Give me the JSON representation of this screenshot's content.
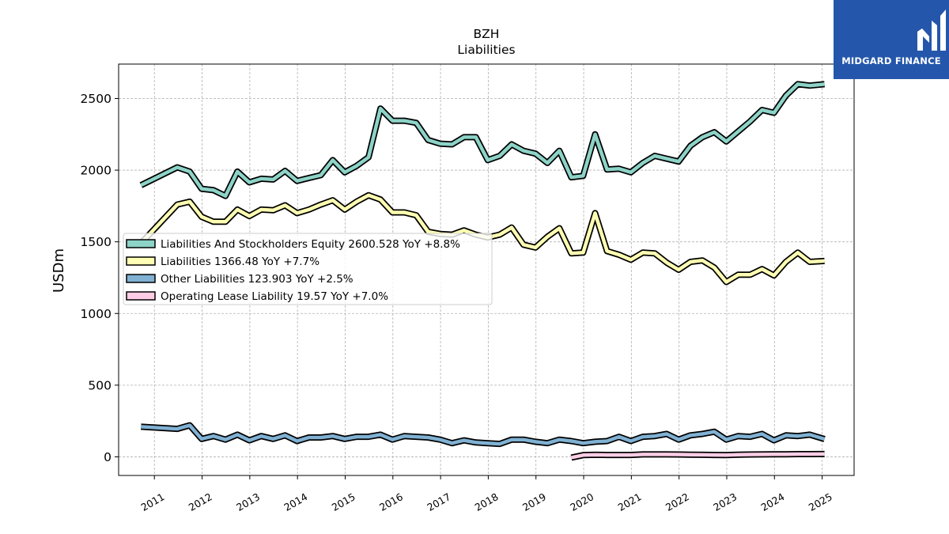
{
  "chart_data": {
    "type": "line",
    "title": "BZH",
    "subtitle": "Liabilities",
    "xlabel": "",
    "ylabel": "USDm",
    "ylim": [
      -130,
      2740
    ],
    "xlim": [
      2010.25,
      2025.67
    ],
    "yticks": [
      0,
      500,
      1000,
      1500,
      2000,
      2500
    ],
    "xticks": [
      "2011",
      "2012",
      "2013",
      "2014",
      "2015",
      "2016",
      "2017",
      "2018",
      "2019",
      "2020",
      "2021",
      "2022",
      "2023",
      "2024",
      "2025"
    ],
    "grid": true,
    "legend_position": "center-left",
    "series": [
      {
        "name": "Liabilities And Stockholders Equity",
        "legend": "Liabilities And Stockholders Equity  2600.528 YoY +8.8%",
        "color": "#8dd3c7",
        "points": [
          [
            2010.72,
            1895
          ],
          [
            2011.48,
            2020
          ],
          [
            2011.74,
            1990
          ],
          [
            2011.99,
            1870
          ],
          [
            2012.24,
            1860
          ],
          [
            2012.49,
            1820
          ],
          [
            2012.74,
            1990
          ],
          [
            2012.99,
            1915
          ],
          [
            2013.24,
            1940
          ],
          [
            2013.49,
            1935
          ],
          [
            2013.74,
            1995
          ],
          [
            2013.99,
            1925
          ],
          [
            2014.24,
            1945
          ],
          [
            2014.49,
            1965
          ],
          [
            2014.74,
            2070
          ],
          [
            2014.99,
            1985
          ],
          [
            2015.24,
            2030
          ],
          [
            2015.49,
            2090
          ],
          [
            2015.74,
            2430
          ],
          [
            2015.99,
            2345
          ],
          [
            2016.24,
            2345
          ],
          [
            2016.49,
            2330
          ],
          [
            2016.74,
            2210
          ],
          [
            2016.99,
            2185
          ],
          [
            2017.24,
            2180
          ],
          [
            2017.49,
            2230
          ],
          [
            2017.74,
            2230
          ],
          [
            2017.99,
            2070
          ],
          [
            2018.24,
            2100
          ],
          [
            2018.49,
            2180
          ],
          [
            2018.74,
            2135
          ],
          [
            2018.99,
            2115
          ],
          [
            2019.24,
            2050
          ],
          [
            2019.49,
            2135
          ],
          [
            2019.74,
            1950
          ],
          [
            2019.99,
            1960
          ],
          [
            2020.24,
            2250
          ],
          [
            2020.49,
            2005
          ],
          [
            2020.74,
            2010
          ],
          [
            2020.99,
            1985
          ],
          [
            2021.24,
            2050
          ],
          [
            2021.49,
            2100
          ],
          [
            2021.74,
            2080
          ],
          [
            2021.99,
            2060
          ],
          [
            2022.24,
            2170
          ],
          [
            2022.49,
            2230
          ],
          [
            2022.74,
            2265
          ],
          [
            2022.99,
            2200
          ],
          [
            2023.24,
            2270
          ],
          [
            2023.49,
            2340
          ],
          [
            2023.74,
            2420
          ],
          [
            2023.99,
            2400
          ],
          [
            2024.24,
            2520
          ],
          [
            2024.49,
            2600
          ],
          [
            2024.74,
            2590
          ],
          [
            2025.05,
            2600
          ]
        ]
      },
      {
        "name": "Liabilities",
        "legend": "Liabilities  1366.48 YoY +7.7%",
        "color": "#ffffb3",
        "points": [
          [
            2010.72,
            1490
          ],
          [
            2011.48,
            1760
          ],
          [
            2011.74,
            1780
          ],
          [
            2011.99,
            1675
          ],
          [
            2012.24,
            1640
          ],
          [
            2012.49,
            1640
          ],
          [
            2012.74,
            1725
          ],
          [
            2012.99,
            1680
          ],
          [
            2013.24,
            1725
          ],
          [
            2013.49,
            1720
          ],
          [
            2013.74,
            1755
          ],
          [
            2013.99,
            1700
          ],
          [
            2014.24,
            1725
          ],
          [
            2014.49,
            1760
          ],
          [
            2014.74,
            1790
          ],
          [
            2014.99,
            1725
          ],
          [
            2015.24,
            1780
          ],
          [
            2015.49,
            1825
          ],
          [
            2015.74,
            1795
          ],
          [
            2015.99,
            1705
          ],
          [
            2016.24,
            1705
          ],
          [
            2016.49,
            1685
          ],
          [
            2016.74,
            1570
          ],
          [
            2016.99,
            1555
          ],
          [
            2017.24,
            1550
          ],
          [
            2017.49,
            1580
          ],
          [
            2017.74,
            1550
          ],
          [
            2017.99,
            1530
          ],
          [
            2018.24,
            1550
          ],
          [
            2018.49,
            1600
          ],
          [
            2018.74,
            1480
          ],
          [
            2018.99,
            1460
          ],
          [
            2019.24,
            1535
          ],
          [
            2019.49,
            1595
          ],
          [
            2019.74,
            1420
          ],
          [
            2019.99,
            1425
          ],
          [
            2020.24,
            1700
          ],
          [
            2020.49,
            1435
          ],
          [
            2020.74,
            1410
          ],
          [
            2020.99,
            1375
          ],
          [
            2021.24,
            1425
          ],
          [
            2021.49,
            1420
          ],
          [
            2021.74,
            1355
          ],
          [
            2021.99,
            1305
          ],
          [
            2022.24,
            1360
          ],
          [
            2022.49,
            1370
          ],
          [
            2022.74,
            1320
          ],
          [
            2022.99,
            1220
          ],
          [
            2023.24,
            1270
          ],
          [
            2023.49,
            1270
          ],
          [
            2023.74,
            1310
          ],
          [
            2023.99,
            1265
          ],
          [
            2024.24,
            1360
          ],
          [
            2024.49,
            1425
          ],
          [
            2024.74,
            1360
          ],
          [
            2025.05,
            1366
          ]
        ]
      },
      {
        "name": "Other Liabilities",
        "legend": "Other Liabilities  123.903 YoY +2.5%",
        "color": "#80b1d3",
        "points": [
          [
            2010.72,
            210
          ],
          [
            2011.48,
            195
          ],
          [
            2011.74,
            220
          ],
          [
            2011.99,
            125
          ],
          [
            2012.24,
            145
          ],
          [
            2012.49,
            120
          ],
          [
            2012.74,
            155
          ],
          [
            2012.99,
            115
          ],
          [
            2013.24,
            145
          ],
          [
            2013.49,
            125
          ],
          [
            2013.74,
            150
          ],
          [
            2013.99,
            110
          ],
          [
            2014.24,
            135
          ],
          [
            2014.49,
            135
          ],
          [
            2014.74,
            145
          ],
          [
            2014.99,
            125
          ],
          [
            2015.24,
            140
          ],
          [
            2015.49,
            140
          ],
          [
            2015.74,
            155
          ],
          [
            2015.99,
            120
          ],
          [
            2016.24,
            145
          ],
          [
            2016.49,
            140
          ],
          [
            2016.74,
            135
          ],
          [
            2016.99,
            120
          ],
          [
            2017.24,
            95
          ],
          [
            2017.49,
            115
          ],
          [
            2017.74,
            100
          ],
          [
            2017.99,
            95
          ],
          [
            2018.24,
            90
          ],
          [
            2018.49,
            120
          ],
          [
            2018.74,
            120
          ],
          [
            2018.99,
            105
          ],
          [
            2019.24,
            95
          ],
          [
            2019.49,
            120
          ],
          [
            2019.74,
            110
          ],
          [
            2019.99,
            95
          ],
          [
            2020.24,
            105
          ],
          [
            2020.49,
            110
          ],
          [
            2020.74,
            140
          ],
          [
            2020.99,
            110
          ],
          [
            2021.24,
            140
          ],
          [
            2021.49,
            145
          ],
          [
            2021.74,
            160
          ],
          [
            2021.99,
            120
          ],
          [
            2022.24,
            150
          ],
          [
            2022.49,
            160
          ],
          [
            2022.74,
            175
          ],
          [
            2022.99,
            120
          ],
          [
            2023.24,
            145
          ],
          [
            2023.49,
            140
          ],
          [
            2023.74,
            160
          ],
          [
            2023.99,
            115
          ],
          [
            2024.24,
            150
          ],
          [
            2024.49,
            145
          ],
          [
            2024.74,
            155
          ],
          [
            2025.05,
            124
          ]
        ]
      },
      {
        "name": "Operating Lease Liability",
        "legend": "Operating Lease Liability  19.57 YoY +7.0%",
        "color": "#fccde5",
        "points": [
          [
            2019.74,
            -5
          ],
          [
            2019.99,
            12
          ],
          [
            2020.24,
            14
          ],
          [
            2020.49,
            13
          ],
          [
            2020.74,
            13
          ],
          [
            2020.99,
            13
          ],
          [
            2021.24,
            17
          ],
          [
            2021.49,
            17
          ],
          [
            2021.74,
            17
          ],
          [
            2021.99,
            16
          ],
          [
            2022.24,
            15
          ],
          [
            2022.49,
            14
          ],
          [
            2022.74,
            13
          ],
          [
            2022.99,
            12
          ],
          [
            2023.24,
            15
          ],
          [
            2023.49,
            16
          ],
          [
            2023.74,
            17
          ],
          [
            2023.99,
            18
          ],
          [
            2024.24,
            18
          ],
          [
            2024.49,
            19
          ],
          [
            2024.74,
            19
          ],
          [
            2025.05,
            19.57
          ]
        ]
      }
    ]
  },
  "logo": {
    "text": "MIDGARD FINANCE",
    "background": "#2457ab"
  }
}
